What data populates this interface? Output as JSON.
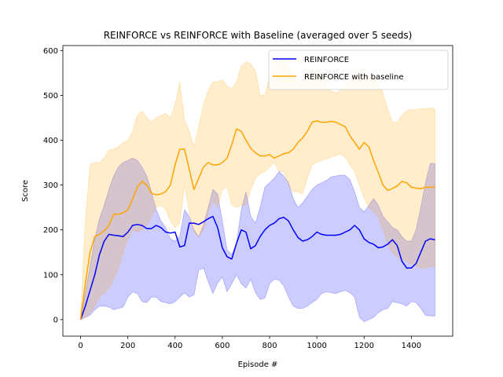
{
  "chart_data": {
    "type": "line",
    "title": "REINFORCE vs REINFORCE with Baseline (averaged over 5 seeds)",
    "xlabel": "Episode #",
    "ylabel": "Score",
    "xlim": [
      -75,
      1575
    ],
    "ylim": [
      -37,
      611
    ],
    "xticks": [
      0,
      200,
      400,
      600,
      800,
      1000,
      1200,
      1400
    ],
    "yticks": [
      0,
      100,
      200,
      300,
      400,
      500,
      600
    ],
    "grid": false,
    "legend_position": "top-right",
    "series": [
      {
        "name": "REINFORCE",
        "color": "#0000ff",
        "band_color": "#0000ff",
        "band_opacity": 0.2,
        "x": [
          0,
          20,
          40,
          60,
          80,
          100,
          120,
          140,
          160,
          180,
          200,
          220,
          240,
          260,
          280,
          300,
          320,
          340,
          360,
          380,
          400,
          420,
          440,
          460,
          480,
          500,
          520,
          540,
          560,
          580,
          600,
          620,
          640,
          660,
          680,
          700,
          720,
          740,
          760,
          780,
          800,
          820,
          840,
          860,
          880,
          900,
          920,
          940,
          960,
          980,
          1000,
          1020,
          1040,
          1060,
          1080,
          1100,
          1120,
          1140,
          1160,
          1180,
          1200,
          1220,
          1240,
          1260,
          1280,
          1300,
          1320,
          1340,
          1360,
          1380,
          1400,
          1420,
          1440,
          1460,
          1480,
          1500
        ],
        "mean": [
          0,
          30,
          65,
          100,
          145,
          175,
          190,
          188,
          187,
          185,
          195,
          210,
          212,
          210,
          203,
          203,
          210,
          205,
          195,
          193,
          195,
          162,
          165,
          215,
          215,
          212,
          218,
          225,
          230,
          205,
          160,
          140,
          135,
          170,
          200,
          195,
          158,
          165,
          185,
          200,
          210,
          215,
          225,
          228,
          220,
          200,
          183,
          175,
          178,
          185,
          195,
          190,
          188,
          188,
          188,
          190,
          195,
          200,
          210,
          200,
          180,
          172,
          168,
          160,
          162,
          168,
          178,
          165,
          130,
          115,
          115,
          125,
          150,
          175,
          180,
          178
        ],
        "lower": [
          0,
          5,
          10,
          22,
          30,
          30,
          28,
          22,
          25,
          28,
          50,
          62,
          58,
          40,
          38,
          50,
          50,
          40,
          38,
          35,
          40,
          50,
          60,
          50,
          55,
          110,
          115,
          85,
          58,
          82,
          95,
          62,
          80,
          100,
          80,
          70,
          90,
          60,
          45,
          48,
          80,
          90,
          88,
          75,
          50,
          30,
          25,
          25,
          30,
          38,
          45,
          58,
          62,
          60,
          58,
          62,
          65,
          60,
          50,
          5,
          -5,
          0,
          5,
          15,
          22,
          25,
          40,
          38,
          35,
          30,
          40,
          38,
          25,
          10,
          8,
          8
        ],
        "upper": [
          0,
          60,
          120,
          180,
          225,
          255,
          290,
          320,
          340,
          350,
          355,
          360,
          355,
          340,
          320,
          285,
          245,
          220,
          205,
          180,
          175,
          185,
          245,
          230,
          200,
          185,
          210,
          250,
          290,
          280,
          220,
          155,
          145,
          170,
          245,
          285,
          230,
          215,
          250,
          295,
          305,
          315,
          330,
          320,
          305,
          270,
          250,
          260,
          275,
          290,
          300,
          305,
          310,
          318,
          320,
          322,
          322,
          312,
          285,
          250,
          240,
          255,
          270,
          255,
          230,
          218,
          205,
          200,
          185,
          175,
          175,
          200,
          250,
          305,
          348,
          348
        ]
      },
      {
        "name": "REINFORCE with baseline",
        "color": "#ffa500",
        "band_color": "#ffa500",
        "band_opacity": 0.2,
        "x": [
          0,
          20,
          40,
          60,
          80,
          100,
          120,
          140,
          160,
          180,
          200,
          220,
          240,
          260,
          280,
          300,
          320,
          340,
          360,
          380,
          400,
          420,
          440,
          460,
          480,
          500,
          520,
          540,
          560,
          580,
          600,
          620,
          640,
          660,
          680,
          700,
          720,
          740,
          760,
          780,
          800,
          820,
          840,
          860,
          880,
          900,
          920,
          940,
          960,
          980,
          1000,
          1020,
          1040,
          1060,
          1080,
          1100,
          1120,
          1140,
          1160,
          1180,
          1200,
          1220,
          1240,
          1260,
          1280,
          1300,
          1320,
          1340,
          1360,
          1380,
          1400,
          1420,
          1440,
          1460,
          1480,
          1500
        ],
        "mean": [
          0,
          80,
          150,
          185,
          190,
          198,
          210,
          235,
          235,
          238,
          245,
          268,
          295,
          308,
          300,
          282,
          278,
          280,
          285,
          300,
          345,
          380,
          380,
          335,
          290,
          315,
          340,
          350,
          345,
          345,
          350,
          360,
          390,
          425,
          420,
          400,
          382,
          372,
          365,
          365,
          368,
          360,
          365,
          370,
          372,
          380,
          395,
          405,
          420,
          440,
          443,
          440,
          440,
          442,
          440,
          435,
          430,
          410,
          395,
          380,
          395,
          385,
          355,
          328,
          300,
          288,
          292,
          298,
          308,
          305,
          295,
          293,
          292,
          295,
          295,
          295
        ],
        "lower": [
          0,
          5,
          15,
          30,
          50,
          60,
          70,
          90,
          115,
          150,
          180,
          200,
          195,
          200,
          210,
          230,
          250,
          255,
          245,
          220,
          205,
          215,
          300,
          240,
          195,
          185,
          200,
          240,
          265,
          250,
          290,
          295,
          255,
          250,
          255,
          255,
          290,
          315,
          325,
          330,
          340,
          350,
          330,
          330,
          300,
          285,
          285,
          280,
          315,
          345,
          350,
          355,
          358,
          362,
          365,
          370,
          362,
          345,
          330,
          300,
          270,
          250,
          240,
          230,
          200,
          170,
          150,
          140,
          135,
          130,
          125,
          120,
          115,
          115,
          118,
          118
        ],
        "upper": [
          0,
          220,
          345,
          350,
          350,
          360,
          378,
          380,
          385,
          395,
          400,
          420,
          455,
          465,
          450,
          440,
          450,
          455,
          460,
          450,
          480,
          530,
          445,
          420,
          385,
          430,
          480,
          510,
          530,
          530,
          535,
          520,
          515,
          530,
          565,
          575,
          570,
          555,
          500,
          500,
          540,
          570,
          580,
          578,
          560,
          540,
          530,
          520,
          540,
          555,
          550,
          540,
          525,
          510,
          505,
          510,
          520,
          530,
          545,
          555,
          550,
          545,
          540,
          525,
          505,
          470,
          440,
          440,
          455,
          465,
          468,
          468,
          470,
          470,
          472,
          470
        ]
      }
    ]
  }
}
